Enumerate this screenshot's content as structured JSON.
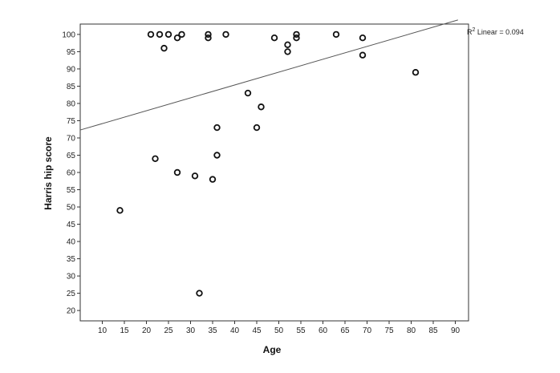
{
  "chart_data": {
    "type": "scatter",
    "xlabel": "Age",
    "ylabel": "Harris hip score",
    "xlim": [
      5,
      93
    ],
    "ylim": [
      17,
      103
    ],
    "x_ticks": [
      10,
      15,
      20,
      25,
      30,
      35,
      40,
      45,
      50,
      55,
      60,
      65,
      70,
      75,
      80,
      85,
      90
    ],
    "y_ticks": [
      20,
      25,
      30,
      35,
      40,
      45,
      50,
      55,
      60,
      65,
      70,
      75,
      80,
      85,
      90,
      95,
      100
    ],
    "grid": false,
    "marker": "open-circle",
    "points": [
      {
        "x": 14,
        "y": 49
      },
      {
        "x": 21,
        "y": 100
      },
      {
        "x": 22,
        "y": 64
      },
      {
        "x": 23,
        "y": 100
      },
      {
        "x": 24,
        "y": 96
      },
      {
        "x": 25,
        "y": 100
      },
      {
        "x": 27,
        "y": 99
      },
      {
        "x": 27,
        "y": 60
      },
      {
        "x": 28,
        "y": 100
      },
      {
        "x": 31,
        "y": 59
      },
      {
        "x": 32,
        "y": 25
      },
      {
        "x": 34,
        "y": 100
      },
      {
        "x": 34,
        "y": 99
      },
      {
        "x": 35,
        "y": 58
      },
      {
        "x": 36,
        "y": 73
      },
      {
        "x": 36,
        "y": 65
      },
      {
        "x": 38,
        "y": 100
      },
      {
        "x": 43,
        "y": 83
      },
      {
        "x": 45,
        "y": 73
      },
      {
        "x": 46,
        "y": 79
      },
      {
        "x": 49,
        "y": 99
      },
      {
        "x": 52,
        "y": 97
      },
      {
        "x": 52,
        "y": 95
      },
      {
        "x": 54,
        "y": 100
      },
      {
        "x": 54,
        "y": 99
      },
      {
        "x": 63,
        "y": 100
      },
      {
        "x": 69,
        "y": 99
      },
      {
        "x": 69,
        "y": 94
      },
      {
        "x": 81,
        "y": 89
      }
    ],
    "fit_line": {
      "type": "linear",
      "x": [
        5,
        90.6
      ],
      "y": [
        72.3,
        104.2
      ]
    },
    "annotation": {
      "prefix": "R",
      "superscript": "2",
      "text": " Linear = 0.094"
    }
  }
}
